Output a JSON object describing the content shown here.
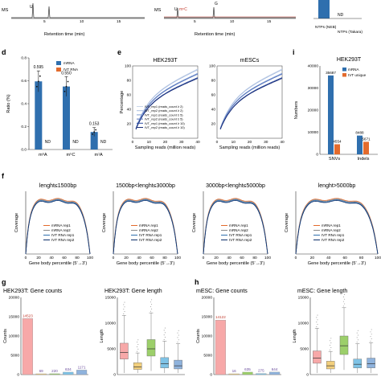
{
  "panel_labels": [
    "d",
    "e",
    "i",
    "f",
    "g",
    "h"
  ],
  "colors": {
    "mrna": "#2f6fae",
    "ivt": "#e36b2d",
    "top_trace_black": "#333333",
    "top_trace_red": "#c43c2e",
    "boxplot_up": "#f2cf7c",
    "boxplot_down": "#9ccf6a",
    "boxplot_mrnamiss": "#7fc3e6",
    "boxplot_ivtmiss": "#8fb3dd",
    "boxplot_none": "#f7a8a8"
  },
  "top_strip": {
    "ylabel1": "MS",
    "xlabel1": "Retention time (min)",
    "ticks1": [
      "5",
      "10",
      "15"
    ],
    "peak_label1": "U",
    "ylabel2": "MS",
    "xlabel2": "Retention time (min)",
    "ticks2": [
      "5",
      "10",
      "15"
    ],
    "peak_labels2": [
      "U",
      "m⁵C",
      "G"
    ],
    "bar_nd": "ND",
    "bar_labels": [
      "NTPs (NEB)",
      "NTPs (Takara)"
    ]
  },
  "chart_data": [
    {
      "id": "d",
      "type": "bar",
      "ylabel": "Ratio (%)",
      "categories": [
        "m⁶A",
        "m⁵C",
        "m¹A"
      ],
      "ylim": [
        0,
        0.8
      ],
      "yticks": [
        "0.0",
        "0.2",
        "0.4",
        "0.6",
        "0.8"
      ],
      "series": [
        {
          "name": "mRNA",
          "values": [
            0.595,
            0.55,
            0.153
          ],
          "labels": [
            "0.595",
            "0.550",
            "0.153"
          ]
        },
        {
          "name": "IVT RNA",
          "values": [
            null,
            null,
            null
          ],
          "labels": [
            "ND",
            "ND",
            "ND"
          ]
        }
      ]
    },
    {
      "id": "e",
      "type": "line",
      "titles": [
        "HEK293T",
        "mESCs"
      ],
      "xlabel": "Sampling reads (million reads)",
      "ylabel": "Percentage",
      "xticks": [
        "0",
        "10",
        "20",
        "30",
        "40"
      ],
      "yticks": [
        "20",
        "40",
        "60",
        "80",
        "100"
      ],
      "ylim": [
        0,
        100
      ],
      "legend": [
        "IVT_rep1 (reads_count ≥ 2)",
        "IVT_rep2 (reads_count ≥ 2)",
        "IVT_rep1 (reads_count ≥ 5)",
        "IVT_rep2 (reads_count ≥ 5)",
        "IVT_rep1 (reads_count ≥ 10)",
        "IVT_rep2 (reads_count ≥ 10)"
      ],
      "curves_final": [
        96,
        95,
        90,
        89,
        84,
        83
      ]
    },
    {
      "id": "i",
      "type": "bar",
      "title": "HEK293T",
      "ylabel": "Numbers",
      "categories": [
        "SNVs",
        "Indels"
      ],
      "ylim": [
        0,
        40000
      ],
      "yticks": [
        "0",
        "10000",
        "20000",
        "30000",
        "40000"
      ],
      "series": [
        {
          "name": "mRNA",
          "values": [
            35687,
            8488
          ]
        },
        {
          "name": "IVT unique",
          "values": [
            4554,
            5671
          ]
        }
      ],
      "value_labels": [
        "35687",
        "4554",
        "8488",
        "5671"
      ]
    },
    {
      "id": "f",
      "type": "line",
      "titles": [
        "lenght≤1500bp",
        "1500bp<lenght≤3000bp",
        "3000bp<lenght≤5000bp",
        "lenght>5000bp"
      ],
      "xlabel": "Gene body percentile (5'→3')",
      "ylabel": "Coverage",
      "xticks": [
        "0",
        "20",
        "40",
        "60",
        "80",
        "100"
      ],
      "legend": [
        "mRNA rep1",
        "mRNA rep2",
        "IVT RNA rep1",
        "IVT RNA rep2"
      ]
    },
    {
      "id": "g",
      "type": "bar",
      "title": "HEK293T: Gene counts",
      "ylabel": "Counts",
      "categories": [
        "none",
        "up",
        "down",
        "mRNAmiss",
        "IVTmiss"
      ],
      "yticks": [
        "0",
        "5000",
        "10000",
        "15000",
        "20000"
      ],
      "ylim": [
        0,
        20000
      ],
      "values": [
        14523,
        69,
        220,
        634,
        1171
      ],
      "value_labels": [
        "14523",
        "69",
        "220",
        "634",
        "1171"
      ]
    },
    {
      "id": "g2",
      "type": "box",
      "title": "HEK293T: Gene length",
      "ylabel": "Length",
      "categories": [
        "none",
        "up",
        "down",
        "mRNAmiss",
        "IVTmiss"
      ],
      "yticks": [
        "0",
        "5000",
        "10000",
        "15000"
      ],
      "ylim": [
        0,
        15000
      ],
      "boxes": [
        {
          "q1": 3000,
          "median": 4300,
          "q3": 6100,
          "lo": 300,
          "hi": 11500
        },
        {
          "q1": 1000,
          "median": 1500,
          "q3": 2300,
          "lo": 300,
          "hi": 4200
        },
        {
          "q1": 3600,
          "median": 5000,
          "q3": 6800,
          "lo": 700,
          "hi": 12000
        },
        {
          "q1": 1300,
          "median": 2100,
          "q3": 3300,
          "lo": 300,
          "hi": 6500
        },
        {
          "q1": 1100,
          "median": 1700,
          "q3": 2800,
          "lo": 300,
          "hi": 6000
        }
      ]
    },
    {
      "id": "h",
      "type": "bar",
      "title": "mESC: Gene counts",
      "ylabel": "Counts",
      "categories": [
        "none",
        "up",
        "down",
        "mRNAmiss",
        "IVTmiss"
      ],
      "yticks": [
        "0",
        "5000",
        "10000",
        "15000",
        "20000"
      ],
      "ylim": [
        0,
        20000
      ],
      "values": [
        14122,
        16,
        635,
        275,
        644
      ],
      "value_labels": [
        "14122",
        "16",
        "635",
        "275",
        "644"
      ]
    },
    {
      "id": "h2",
      "type": "box",
      "title": "mESC: Gene length",
      "ylabel": "Length",
      "categories": [
        "none",
        "up",
        "down",
        "mRNAmiss",
        "IVTmiss"
      ],
      "yticks": [
        "0",
        "5000",
        "10000",
        "15000"
      ],
      "ylim": [
        0,
        15000
      ],
      "boxes": [
        {
          "q1": 2200,
          "median": 3200,
          "q3": 4600,
          "lo": 300,
          "hi": 9000
        },
        {
          "q1": 1100,
          "median": 1700,
          "q3": 2600,
          "lo": 300,
          "hi": 4500
        },
        {
          "q1": 3900,
          "median": 5600,
          "q3": 7500,
          "lo": 900,
          "hi": 13000
        },
        {
          "q1": 1300,
          "median": 2000,
          "q3": 3000,
          "lo": 300,
          "hi": 6000
        },
        {
          "q1": 1300,
          "median": 2100,
          "q3": 3200,
          "lo": 300,
          "hi": 6200
        }
      ]
    }
  ]
}
